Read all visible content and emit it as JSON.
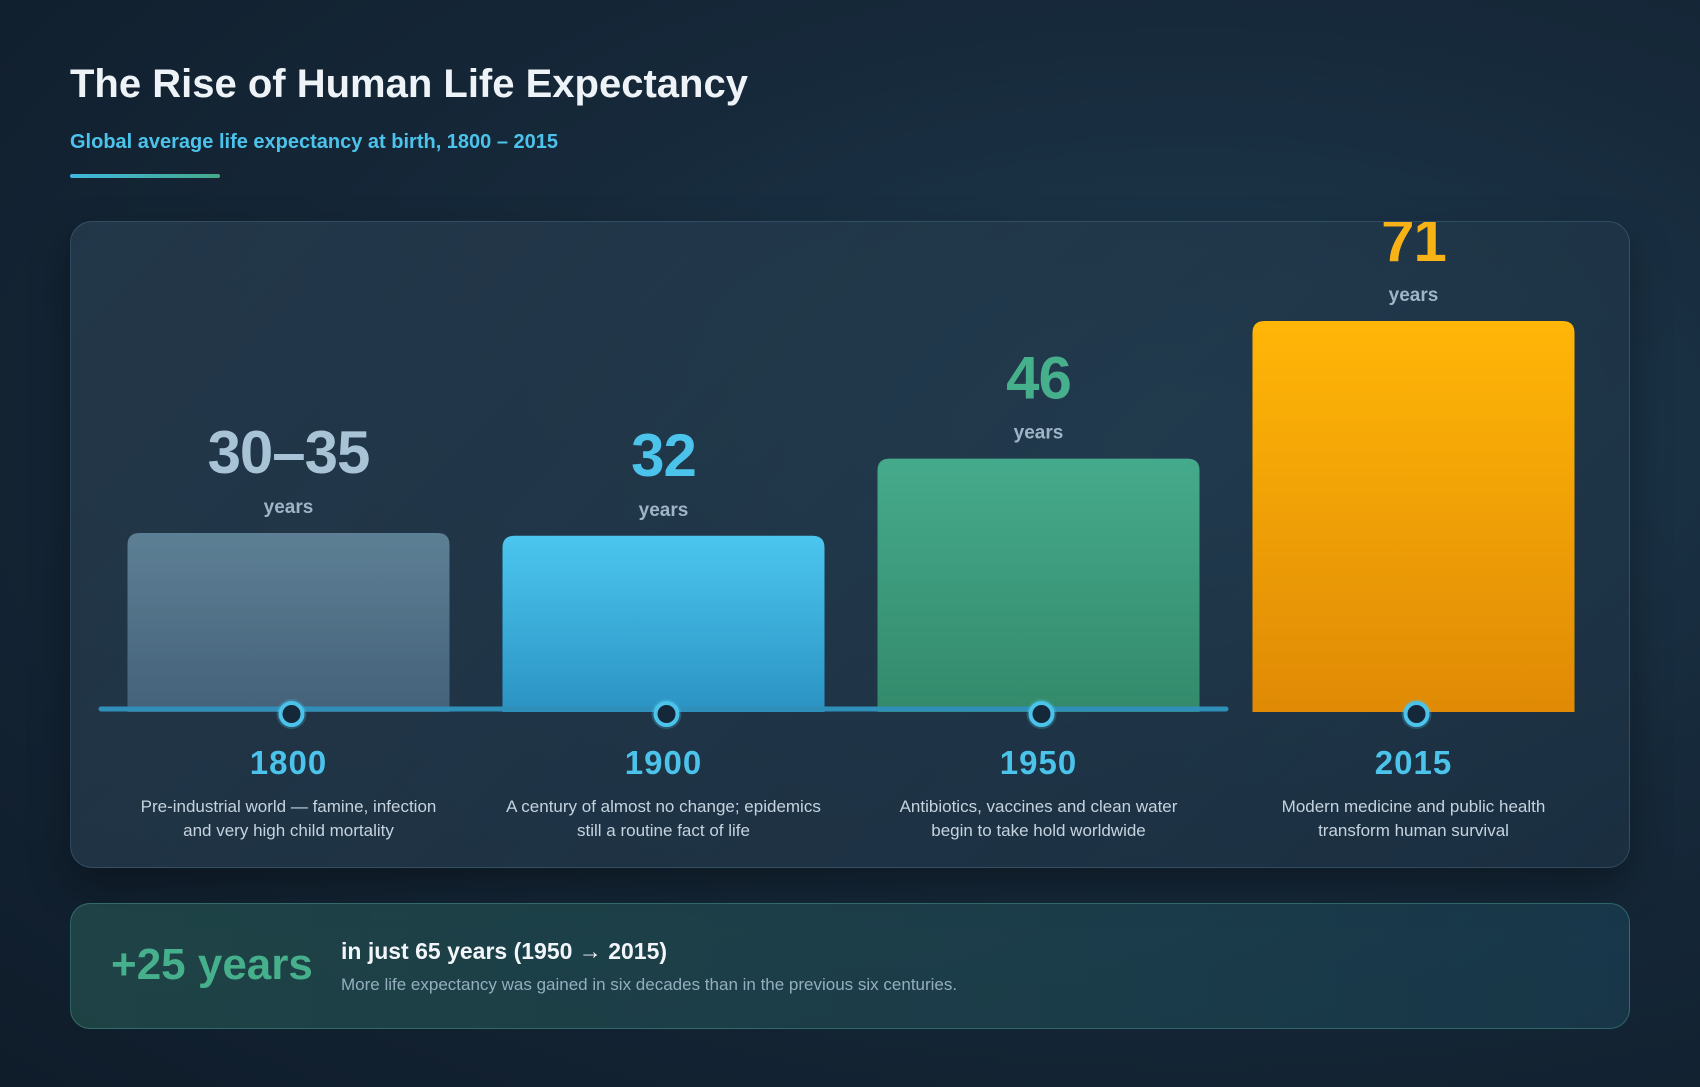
{
  "header": {
    "title": "The Rise of Human Life Expectancy",
    "subtitle": "Global average life expectancy at birth, 1800 – 2015"
  },
  "chart_data": {
    "type": "bar",
    "title": "The Rise of Human Life Expectancy",
    "subtitle": "Global average life expectancy at birth, 1800 – 2015",
    "categories": [
      "1800",
      "1900",
      "1950",
      "2015"
    ],
    "values": [
      32.5,
      32,
      46,
      71
    ],
    "value_labels": [
      "30–35",
      "32",
      "46",
      "71"
    ],
    "unit": "years",
    "descriptions": [
      [
        "Pre-industrial world — famine, infection",
        "and very high child mortality"
      ],
      [
        "A century of almost no change; epidemics",
        "still a routine fact of life"
      ],
      [
        "Antibiotics, vaccines and clean water",
        "begin to take hold worldwide"
      ],
      [
        "Modern medicine and public health",
        "transform human survival"
      ]
    ],
    "ylim": [
      0,
      71
    ],
    "grid": false,
    "colors": [
      {
        "top": "#5d7f94",
        "bottom": "#44627a",
        "label": "#a9c3d6"
      },
      {
        "top": "#4bc6ee",
        "bottom": "#2b93c4",
        "label": "#4cc3ea"
      },
      {
        "top": "#45aa8b",
        "bottom": "#338a6b",
        "label": "#46b08c"
      },
      {
        "top": "#ffb607",
        "bottom": "#e08a05",
        "label": "#f7b215"
      }
    ]
  },
  "callout": {
    "big": "+25 years",
    "headline": "in just 65 years (1950 → 2015)",
    "text": "More life expectancy was gained in six decades than in the previous six centuries."
  }
}
